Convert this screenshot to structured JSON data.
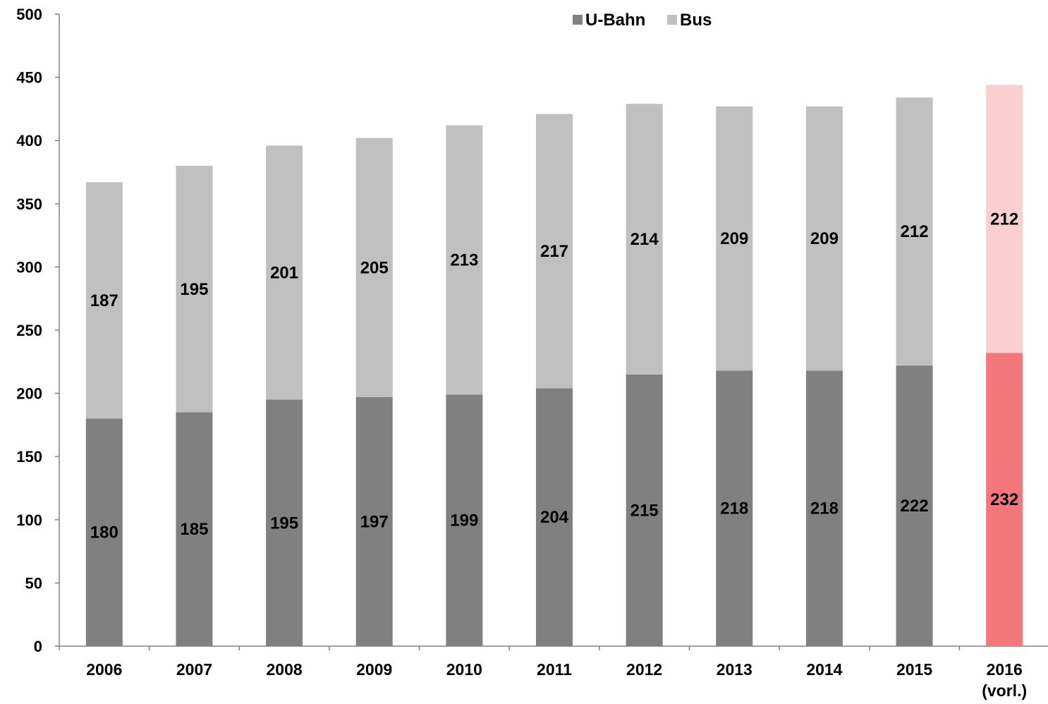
{
  "chart_data": {
    "type": "bar",
    "stacked": true,
    "title": "",
    "xlabel": "",
    "ylabel": "",
    "ylim": [
      0,
      500
    ],
    "yticks": [
      0,
      50,
      100,
      150,
      200,
      250,
      300,
      350,
      400,
      450,
      500
    ],
    "grid": false,
    "legend_position": "top-center",
    "categories": [
      "2006",
      "2007",
      "2008",
      "2009",
      "2010",
      "2011",
      "2012",
      "2013",
      "2014",
      "2015",
      "2016\n(vorl.)"
    ],
    "series": [
      {
        "name": "U-Bahn",
        "color": "#808080",
        "highlight_color": "#f4777b",
        "values": [
          180,
          185,
          195,
          197,
          199,
          204,
          215,
          218,
          218,
          222,
          232
        ]
      },
      {
        "name": "Bus",
        "color": "#c0c0c0",
        "highlight_color": "#f9cfd0",
        "values": [
          187,
          195,
          201,
          205,
          213,
          217,
          214,
          209,
          209,
          212,
          212
        ]
      }
    ],
    "highlight_category_index": 10
  }
}
